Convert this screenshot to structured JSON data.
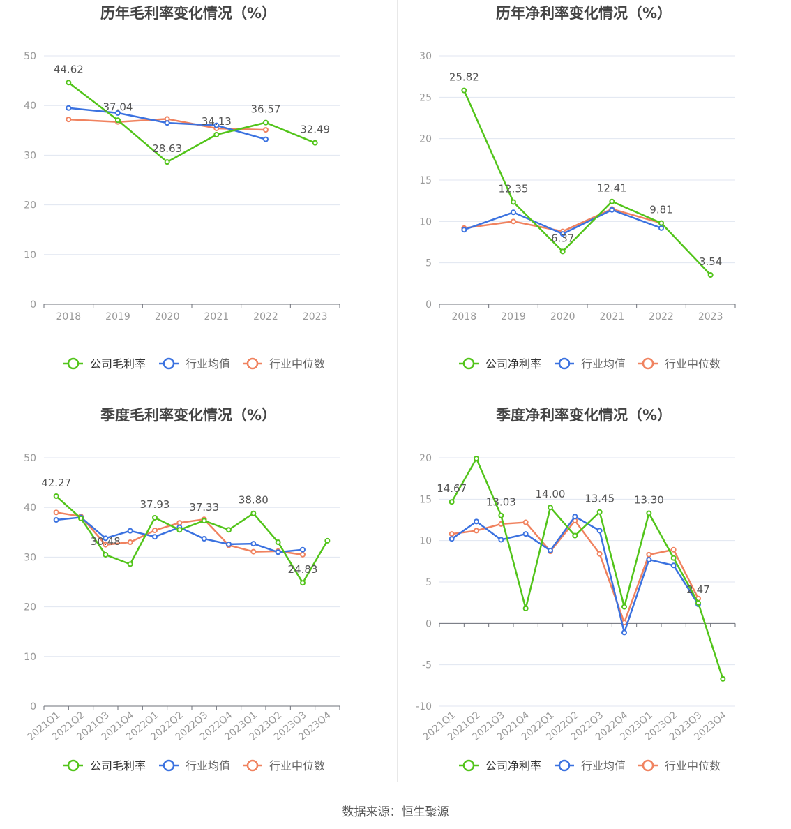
{
  "source_text": "数据来源：恒生聚源",
  "colors": {
    "company": "#52c41a",
    "avg": "#3b72e0",
    "median": "#f0825f",
    "grid": "#e0e6f1",
    "axis": "#6e7079",
    "label": "#999999",
    "title": "#444444"
  },
  "chart_data": [
    {
      "type": "line",
      "title": "历年毛利率变化情况（%）",
      "categories": [
        "2018",
        "2019",
        "2020",
        "2021",
        "2022",
        "2023"
      ],
      "ylim": [
        0,
        50
      ],
      "yticks": [
        0,
        10,
        20,
        30,
        40,
        50
      ],
      "grid": true,
      "legend_position": "bottom",
      "series": [
        {
          "name": "公司毛利率",
          "key": "company",
          "values": [
            44.62,
            37.04,
            28.63,
            34.13,
            36.57,
            32.49
          ],
          "labels": [
            "44.62",
            "37.04",
            "28.63",
            "34.13",
            "36.57",
            "32.49"
          ]
        },
        {
          "name": "行业均值",
          "key": "avg",
          "values": [
            39.5,
            38.5,
            36.5,
            36.0,
            33.2,
            null
          ]
        },
        {
          "name": "行业中位数",
          "key": "median",
          "values": [
            37.2,
            36.7,
            37.3,
            35.4,
            35.1,
            null
          ]
        }
      ]
    },
    {
      "type": "line",
      "title": "历年净利率变化情况（%）",
      "categories": [
        "2018",
        "2019",
        "2020",
        "2021",
        "2022",
        "2023"
      ],
      "ylim": [
        0,
        30
      ],
      "yticks": [
        0,
        5,
        10,
        15,
        20,
        25,
        30
      ],
      "grid": true,
      "legend_position": "bottom",
      "series": [
        {
          "name": "公司净利率",
          "key": "company",
          "values": [
            25.82,
            12.35,
            6.37,
            12.41,
            9.81,
            3.54
          ],
          "labels": [
            "25.82",
            "12.35",
            "6.37",
            "12.41",
            "9.81",
            "3.54"
          ]
        },
        {
          "name": "行业均值",
          "key": "avg",
          "values": [
            9.0,
            11.1,
            8.5,
            11.4,
            9.2,
            null
          ]
        },
        {
          "name": "行业中位数",
          "key": "median",
          "values": [
            9.2,
            10.0,
            8.8,
            11.5,
            9.8,
            null
          ]
        }
      ]
    },
    {
      "type": "line",
      "title": "季度毛利率变化情况（%）",
      "categories": [
        "2021Q1",
        "2021Q2",
        "2021Q3",
        "2021Q4",
        "2022Q1",
        "2022Q2",
        "2022Q3",
        "2022Q4",
        "2023Q1",
        "2023Q2",
        "2023Q3",
        "2023Q4"
      ],
      "ylim": [
        0,
        50
      ],
      "yticks": [
        0,
        10,
        20,
        30,
        40,
        50
      ],
      "grid": true,
      "legend_position": "bottom",
      "series": [
        {
          "name": "公司毛利率",
          "key": "company",
          "values": [
            42.27,
            37.8,
            30.48,
            28.6,
            37.93,
            35.5,
            37.33,
            35.5,
            38.8,
            33.0,
            24.83,
            33.3
          ],
          "labels": [
            "42.27",
            "",
            "30.48",
            "",
            "37.93",
            "",
            "37.33",
            "",
            "38.80",
            "",
            "24.83",
            ""
          ]
        },
        {
          "name": "行业均值",
          "key": "avg",
          "values": [
            37.5,
            38.0,
            33.8,
            35.3,
            34.1,
            36.0,
            33.7,
            32.6,
            32.7,
            31.0,
            31.5,
            null
          ]
        },
        {
          "name": "行业中位数",
          "key": "median",
          "values": [
            39.0,
            38.2,
            32.5,
            33.0,
            35.4,
            36.9,
            37.6,
            32.4,
            31.1,
            31.2,
            30.5,
            null
          ]
        }
      ]
    },
    {
      "type": "line",
      "title": "季度净利率变化情况（%）",
      "categories": [
        "2021Q1",
        "2021Q2",
        "2021Q3",
        "2021Q4",
        "2022Q1",
        "2022Q2",
        "2022Q3",
        "2022Q4",
        "2023Q1",
        "2023Q2",
        "2023Q3",
        "2023Q4"
      ],
      "ylim": [
        -10,
        20
      ],
      "yticks": [
        -10,
        -5,
        0,
        5,
        10,
        15,
        20
      ],
      "grid": true,
      "legend_position": "bottom",
      "series": [
        {
          "name": "公司净利率",
          "key": "company",
          "values": [
            14.67,
            19.9,
            13.03,
            1.8,
            14.0,
            10.6,
            13.45,
            2.0,
            13.3,
            7.9,
            2.47,
            -6.7
          ],
          "labels": [
            "14.67",
            "",
            "13.03",
            "",
            "14.00",
            "",
            "13.45",
            "",
            "13.30",
            "",
            "2.47",
            ""
          ]
        },
        {
          "name": "行业均值",
          "key": "avg",
          "values": [
            10.2,
            12.3,
            10.1,
            10.8,
            8.8,
            12.9,
            11.2,
            -1.1,
            7.7,
            7.0,
            2.3,
            null
          ]
        },
        {
          "name": "行业中位数",
          "key": "median",
          "values": [
            10.8,
            11.2,
            12.0,
            12.2,
            8.7,
            12.4,
            8.4,
            0.1,
            8.3,
            8.9,
            3.0,
            null
          ]
        }
      ]
    }
  ]
}
